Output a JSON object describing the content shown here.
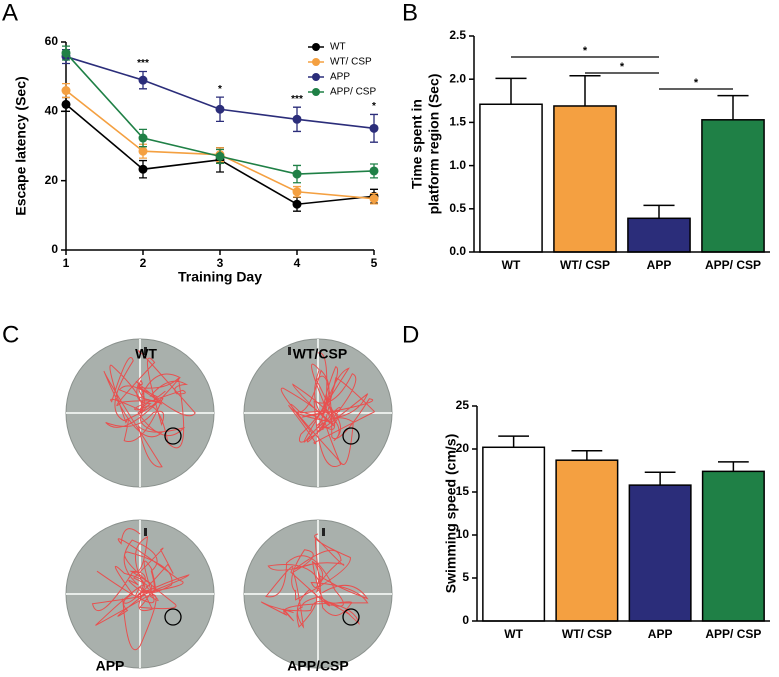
{
  "panel_labels": [
    "A",
    "B",
    "C",
    "D"
  ],
  "chart_data": [
    {
      "type": "line",
      "ylabel": "Escape latency (Sec)",
      "xlabel": "Training Day",
      "x": [
        1,
        2,
        3,
        4,
        5
      ],
      "xlim": [
        1,
        5
      ],
      "xticks": [
        1,
        2,
        3,
        4,
        5
      ],
      "ylim": [
        0,
        60
      ],
      "yticks": [
        0,
        20,
        40,
        60
      ],
      "series": [
        {
          "name": "WT",
          "color": "#000000",
          "values": [
            42,
            23.3,
            26,
            13.2,
            15.5
          ],
          "errors": [
            2,
            2.5,
            3.5,
            2,
            2
          ]
        },
        {
          "name": "WT/ CSP",
          "color": "#f4a041",
          "values": [
            46,
            28.5,
            27.5,
            16.8,
            14.8
          ],
          "errors": [
            2,
            2,
            2,
            1.5,
            1.5
          ]
        },
        {
          "name": "APP",
          "color": "#2b2d7a",
          "values": [
            55.8,
            49,
            40.6,
            37.7,
            35.1
          ],
          "errors": [
            2,
            2.5,
            3.5,
            3.5,
            4
          ]
        },
        {
          "name": "APP/ CSP",
          "color": "#1f8046",
          "values": [
            56.8,
            32.3,
            27,
            21.9,
            22.8
          ],
          "errors": [
            2,
            2.5,
            2,
            2.5,
            2
          ]
        }
      ],
      "annotations": [
        {
          "x": 2,
          "text": "***"
        },
        {
          "x": 3,
          "text": "*"
        },
        {
          "x": 4,
          "text": "***"
        },
        {
          "x": 5,
          "text": "*"
        }
      ]
    },
    {
      "type": "bar",
      "ylabel": [
        "Time spent in",
        "platform region (Sec)"
      ],
      "categories": [
        "WT",
        "WT/ CSP",
        "APP",
        "APP/ CSP"
      ],
      "values": [
        1.71,
        1.69,
        0.39,
        1.53
      ],
      "errors": [
        0.3,
        0.35,
        0.15,
        0.28
      ],
      "colors": [
        "#ffffff",
        "#f4a041",
        "#2b2d7a",
        "#1f8046"
      ],
      "ylim": [
        0,
        2.5
      ],
      "yticks": [
        {
          "value": 0,
          "label": "0.0"
        },
        0.5,
        {
          "value": 1,
          "label": "1.0"
        },
        1.5,
        {
          "value": 2,
          "label": "2.0"
        },
        2.5
      ],
      "comparisons": [
        {
          "from": 0,
          "to": 2,
          "label": "*"
        },
        {
          "from": 1,
          "to": 2,
          "label": "*"
        },
        {
          "from": 2,
          "to": 3,
          "label": "*"
        }
      ]
    },
    {
      "type": "bar",
      "ylabel": "Swimming speed (cm/s)",
      "categories": [
        "WT",
        "WT/ CSP",
        "APP",
        "APP/ CSP"
      ],
      "values": [
        20.2,
        18.7,
        15.8,
        17.4
      ],
      "errors": [
        1.3,
        1.1,
        1.5,
        1.1
      ],
      "colors": [
        "#ffffff",
        "#f4a041",
        "#2b2d7a",
        "#1f8046"
      ],
      "ylim": [
        0,
        25
      ],
      "yticks": [
        0,
        5,
        10,
        15,
        20,
        25
      ]
    }
  ],
  "swim_paths": {
    "labels": [
      "WT",
      "WT/CSP",
      "APP",
      "APP/CSP"
    ]
  }
}
